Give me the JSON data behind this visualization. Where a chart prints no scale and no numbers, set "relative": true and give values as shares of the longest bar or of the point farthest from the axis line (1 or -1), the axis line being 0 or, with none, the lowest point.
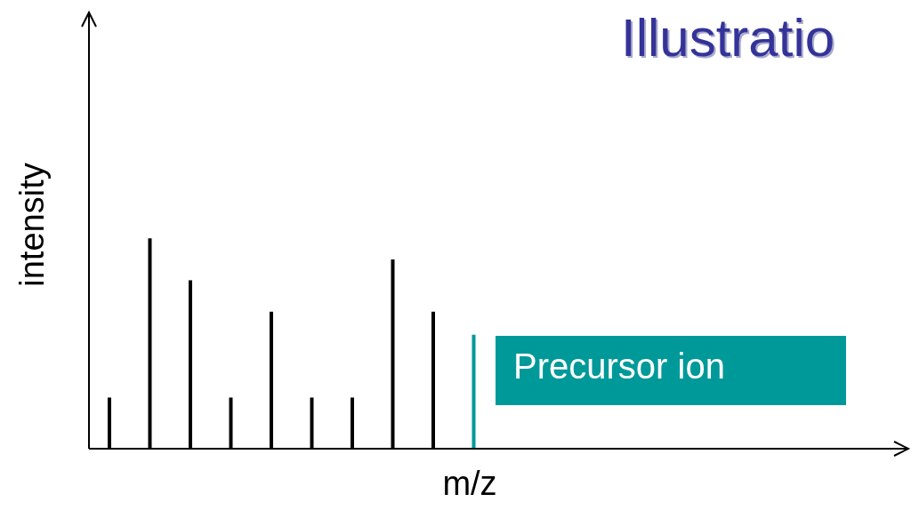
{
  "chart_data": {
    "type": "bar",
    "title": "Illustratio",
    "xlabel": "m/z",
    "ylabel": "intensity",
    "relative": true,
    "categories": [
      null,
      null,
      null,
      null,
      null,
      null,
      null,
      null,
      null,
      null
    ],
    "values": [
      0.24,
      1,
      0.8,
      0.24,
      0.65,
      0.24,
      0.24,
      0.9,
      0.65,
      0.54
    ],
    "colors": [
      "#000000",
      "#000000",
      "#000000",
      "#000000",
      "#000000",
      "#000000",
      "#000000",
      "#000000",
      "#000000",
      "#009999"
    ],
    "annotations": [
      "Precursor ion"
    ]
  }
}
